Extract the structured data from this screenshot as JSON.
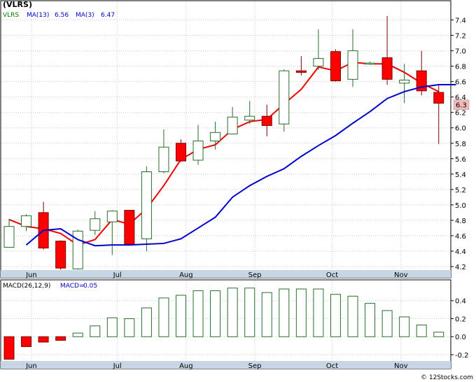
{
  "chart_data": [
    {
      "type": "candlestick",
      "title": "",
      "legend": {
        "ticker": "(VLRS)",
        "items": [
          {
            "label": "VLRS",
            "value": "",
            "color": "#008000"
          },
          {
            "label": "MA(13)",
            "value": "6.56",
            "color": "#0000cc"
          },
          {
            "label": "MA(3)",
            "value": "6.47",
            "color": "#0000cc"
          }
        ]
      },
      "last_price_label": "6.3",
      "ylim": [
        4.1,
        7.55
      ],
      "y_ticks": [
        "4.2",
        "4.4",
        "4.6",
        "4.8",
        "5.0",
        "5.2",
        "5.4",
        "5.6",
        "5.8",
        "6.0",
        "6.2",
        "6.4",
        "6.6",
        "6.8",
        "7.0",
        "7.2",
        "7.4"
      ],
      "x_ticks": [
        {
          "label": "Jun",
          "week": 1.3
        },
        {
          "label": "Jul",
          "week": 6.3
        },
        {
          "label": "Aug",
          "week": 10.3
        },
        {
          "label": "Sep",
          "week": 14.3
        },
        {
          "label": "Oct",
          "week": 18.8
        },
        {
          "label": "Nov",
          "week": 22.8
        }
      ],
      "candles": [
        {
          "o": 4.45,
          "h": 4.82,
          "l": 4.45,
          "c": 4.72
        },
        {
          "o": 4.72,
          "h": 4.88,
          "l": 4.66,
          "c": 4.86
        },
        {
          "o": 4.9,
          "h": 5.04,
          "l": 4.42,
          "c": 4.44
        },
        {
          "o": 4.53,
          "h": 4.54,
          "l": 4.16,
          "c": 4.18
        },
        {
          "o": 4.17,
          "h": 4.68,
          "l": 4.16,
          "c": 4.66
        },
        {
          "o": 4.67,
          "h": 4.92,
          "l": 4.61,
          "c": 4.82
        },
        {
          "o": 4.78,
          "h": 4.93,
          "l": 4.35,
          "c": 4.92
        },
        {
          "o": 4.93,
          "h": 4.93,
          "l": 4.48,
          "c": 4.49
        },
        {
          "o": 4.56,
          "h": 5.5,
          "l": 4.4,
          "c": 5.43
        },
        {
          "o": 5.43,
          "h": 5.98,
          "l": 5.41,
          "c": 5.75
        },
        {
          "o": 5.8,
          "h": 5.85,
          "l": 5.56,
          "c": 5.57
        },
        {
          "o": 5.58,
          "h": 6.04,
          "l": 5.52,
          "c": 5.83
        },
        {
          "o": 5.83,
          "h": 6.08,
          "l": 5.72,
          "c": 5.94
        },
        {
          "o": 5.92,
          "h": 6.27,
          "l": 5.92,
          "c": 6.14
        },
        {
          "o": 6.1,
          "h": 6.35,
          "l": 6.05,
          "c": 6.15
        },
        {
          "o": 6.15,
          "h": 6.3,
          "l": 5.89,
          "c": 6.03
        },
        {
          "o": 6.05,
          "h": 6.76,
          "l": 5.95,
          "c": 6.74
        },
        {
          "o": 6.74,
          "h": 6.93,
          "l": 6.68,
          "c": 6.72
        },
        {
          "o": 6.8,
          "h": 7.28,
          "l": 6.75,
          "c": 6.9
        },
        {
          "o": 6.99,
          "h": 7.02,
          "l": 6.6,
          "c": 6.61
        },
        {
          "o": 6.63,
          "h": 7.28,
          "l": 6.53,
          "c": 7.0
        },
        {
          "o": 6.84,
          "h": 6.86,
          "l": 6.84,
          "c": 6.84
        },
        {
          "o": 6.91,
          "h": 7.45,
          "l": 6.56,
          "c": 6.63
        },
        {
          "o": 6.58,
          "h": 6.83,
          "l": 6.32,
          "c": 6.62
        },
        {
          "o": 6.74,
          "h": 7.0,
          "l": 6.42,
          "c": 6.48
        },
        {
          "o": 6.46,
          "h": 6.55,
          "l": 5.79,
          "c": 6.32
        }
      ],
      "series": [
        {
          "name": "MA(3)",
          "color": "#ee0000",
          "x_start": 0,
          "values": [
            4.81,
            4.72,
            4.69,
            4.63,
            4.48,
            4.55,
            4.81,
            4.75,
            4.95,
            5.25,
            5.59,
            5.72,
            5.78,
            5.98,
            6.08,
            6.11,
            6.31,
            6.5,
            6.79,
            6.74,
            6.85,
            6.83,
            6.83,
            6.72,
            6.58,
            6.47
          ]
        },
        {
          "name": "MA(13)",
          "color": "#0000cc",
          "x_start": 1,
          "values": [
            4.48,
            4.67,
            4.69,
            4.55,
            4.47,
            4.48,
            4.48,
            4.49,
            4.5,
            4.56,
            4.7,
            4.84,
            5.1,
            5.25,
            5.37,
            5.47,
            5.63,
            5.77,
            5.9,
            6.06,
            6.21,
            6.38,
            6.47,
            6.53,
            6.56,
            6.56
          ]
        }
      ]
    },
    {
      "type": "bar",
      "legend": {
        "items": [
          {
            "label": "MACD(26,12,9)",
            "value": "",
            "color": "#000000"
          },
          {
            "label": "MACD",
            "value": "0.05",
            "color": "#0000cc"
          }
        ]
      },
      "ylim": [
        -0.27,
        0.6
      ],
      "y_ticks": [
        "0.4",
        "0.2",
        "0.0",
        "-0.2"
      ],
      "values": [
        -0.25,
        -0.11,
        -0.06,
        -0.04,
        0.04,
        0.12,
        0.21,
        0.2,
        0.32,
        0.43,
        0.46,
        0.51,
        0.51,
        0.54,
        0.54,
        0.49,
        0.53,
        0.53,
        0.53,
        0.47,
        0.45,
        0.37,
        0.29,
        0.22,
        0.13,
        0.05
      ]
    }
  ],
  "footer": {
    "copyright": "© 12Stocks.com"
  },
  "colors": {
    "up_body": "#ffffff",
    "up_border": "#2a6e2a",
    "down_body": "#ff0000",
    "down_border": "#7a0000",
    "frame": "#000000",
    "grid": "#c8c8c8",
    "price_box": "#f3b9b9"
  }
}
